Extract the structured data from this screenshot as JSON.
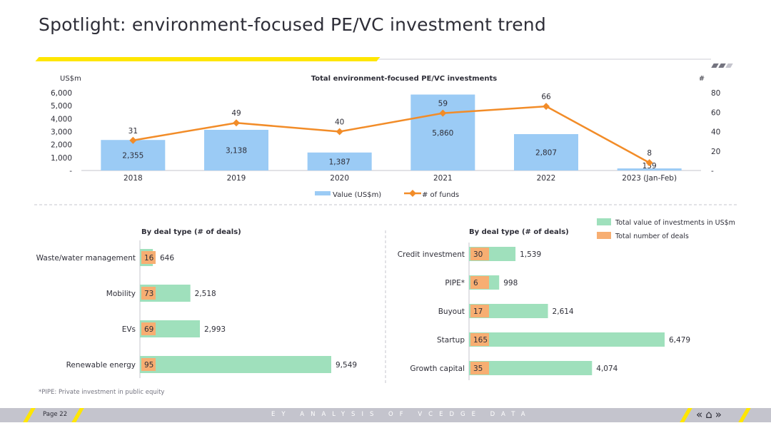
{
  "page": {
    "title": "Spotlight: environment-focused PE/VC investment trend",
    "footnote": "*PIPE: Private investment in public equity",
    "footer_page": "Page 22",
    "footer_center": "EY ANALYSIS OF VCEDGE DATA",
    "nav_icons": [
      "double-chevron-left-icon",
      "home-icon",
      "double-chevron-right-icon"
    ]
  },
  "chart_data": [
    {
      "type": "bar",
      "title": "Total environment-focused PE/VC investments",
      "left_axis_unit": "US$m",
      "right_axis_unit": "#",
      "categories": [
        "2018",
        "2019",
        "2020",
        "2021",
        "2022",
        "2023 (Jan-Feb)"
      ],
      "series": [
        {
          "name": "Value (US$m)",
          "type": "bar",
          "axis": "left",
          "color": "#9bcbf5",
          "values": [
            2355,
            3138,
            1387,
            5860,
            2807,
            159
          ],
          "labels": [
            "2,355",
            "3,138",
            "1,387",
            "5,860",
            "2,807",
            "159"
          ]
        },
        {
          "name": "# of funds",
          "type": "line",
          "axis": "right",
          "color": "#f28c28",
          "values": [
            31,
            49,
            40,
            59,
            66,
            8
          ],
          "labels": [
            "31",
            "49",
            "40",
            "59",
            "66",
            "8"
          ]
        }
      ],
      "left_ylim": [
        0,
        6000
      ],
      "left_ticks": [
        0,
        1000,
        2000,
        3000,
        4000,
        5000,
        6000
      ],
      "left_tick_labels": [
        "-",
        "1,000",
        "2,000",
        "3,000",
        "4,000",
        "5,000",
        "6,000"
      ],
      "right_ylim": [
        0,
        80
      ],
      "right_ticks": [
        0,
        20,
        40,
        60,
        80
      ],
      "right_tick_labels": [
        "-",
        "20",
        "40",
        "60",
        "80"
      ],
      "legend_position": "bottom"
    },
    {
      "type": "bar",
      "orientation": "horizontal",
      "title": "By deal type (# of deals)",
      "categories": [
        "Waste/water management",
        "Mobility",
        "EVs",
        "Renewable energy"
      ],
      "series": [
        {
          "name": "Total value of investments in US$m",
          "color": "#9fe0bc",
          "values": [
            646,
            2518,
            2993,
            9549
          ],
          "labels": [
            "646",
            "2,518",
            "2,993",
            "9,549"
          ]
        },
        {
          "name": "Total number of deals",
          "color": "#f7ae72",
          "values": [
            16,
            73,
            69,
            95
          ],
          "labels": [
            "16",
            "73",
            "69",
            "95"
          ]
        }
      ]
    },
    {
      "type": "bar",
      "orientation": "horizontal",
      "title": "By deal type (# of deals)",
      "categories": [
        "Credit investment",
        "PIPE*",
        "Buyout",
        "Startup",
        "Growth capital"
      ],
      "series": [
        {
          "name": "Total value of investments in US$m",
          "color": "#9fe0bc",
          "values": [
            1539,
            998,
            2614,
            6479,
            4074
          ],
          "labels": [
            "1,539",
            "998",
            "2,614",
            "6,479",
            "4,074"
          ]
        },
        {
          "name": "Total number of deals",
          "color": "#f7ae72",
          "values": [
            30,
            6,
            17,
            165,
            35
          ],
          "labels": [
            "30",
            "6",
            "17",
            "165",
            "35"
          ]
        }
      ]
    }
  ],
  "legend_bottom": {
    "value_label": "Total value of investments in US$m",
    "deals_label": "Total number of deals",
    "value_color": "#9fe0bc",
    "deals_color": "#f7ae72"
  }
}
